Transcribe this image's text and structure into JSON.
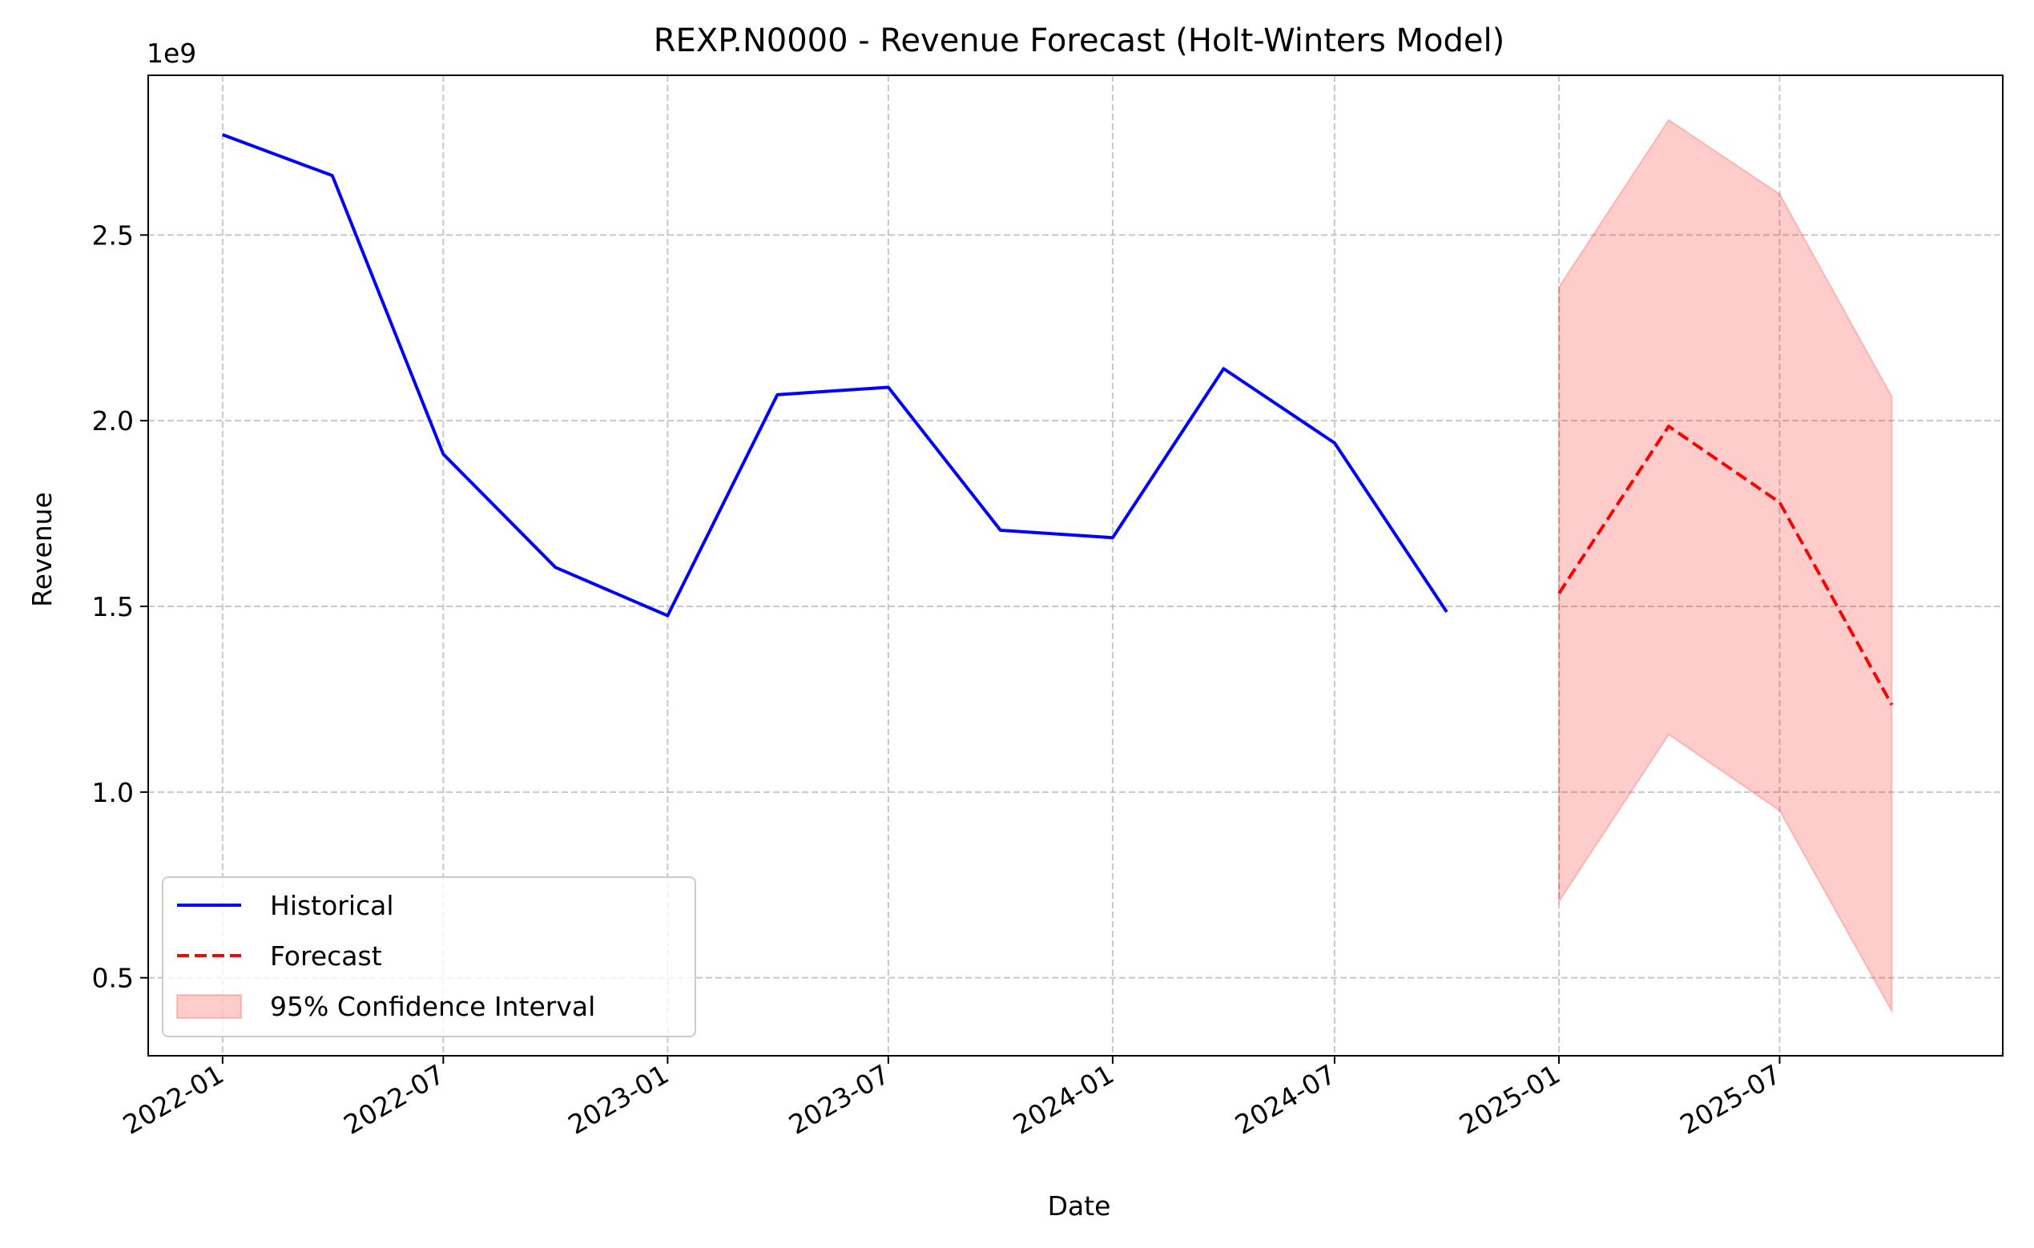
{
  "chart_data": {
    "type": "line",
    "title": "REXP.N0000 - Revenue Forecast (Holt-Winters Model)",
    "xlabel": "Date",
    "ylabel": "Revenue",
    "y_offset_label": "1e9",
    "y_scale": 1000000000,
    "xlim": [
      "2021-11-01",
      "2025-12-31"
    ],
    "ylim": [
      0.29,
      2.93
    ],
    "x_ticks": [
      "2022-01",
      "2022-07",
      "2023-01",
      "2023-07",
      "2024-01",
      "2024-07",
      "2025-01",
      "2025-07"
    ],
    "y_ticks": [
      "0.5",
      "1.0",
      "1.5",
      "2.0",
      "2.5"
    ],
    "grid": true,
    "legend_position": "lower-left",
    "series": [
      {
        "name": "Historical",
        "style": "solid",
        "color": "#0000ff",
        "x": [
          "2022-01-01",
          "2022-04-01",
          "2022-07-01",
          "2022-10-01",
          "2023-01-01",
          "2023-04-01",
          "2023-07-01",
          "2023-10-01",
          "2024-01-01",
          "2024-04-01",
          "2024-07-01",
          "2024-10-01"
        ],
        "y": [
          2.77,
          2.66,
          1.91,
          1.605,
          1.475,
          2.07,
          2.09,
          1.705,
          1.685,
          2.14,
          1.94,
          1.485
        ]
      },
      {
        "name": "Forecast",
        "style": "dashed",
        "color": "#ff0000",
        "x": [
          "2025-01-01",
          "2025-04-01",
          "2025-07-01",
          "2025-10-01"
        ],
        "y": [
          1.535,
          1.985,
          1.78,
          1.235
        ]
      }
    ],
    "interval": {
      "name": "95% Confidence Interval",
      "color": "#ff0000",
      "opacity": 0.2,
      "x": [
        "2025-01-01",
        "2025-04-01",
        "2025-07-01",
        "2025-10-01"
      ],
      "lower": [
        0.705,
        1.155,
        0.95,
        0.41
      ],
      "upper": [
        2.36,
        2.81,
        2.61,
        2.065
      ]
    }
  }
}
